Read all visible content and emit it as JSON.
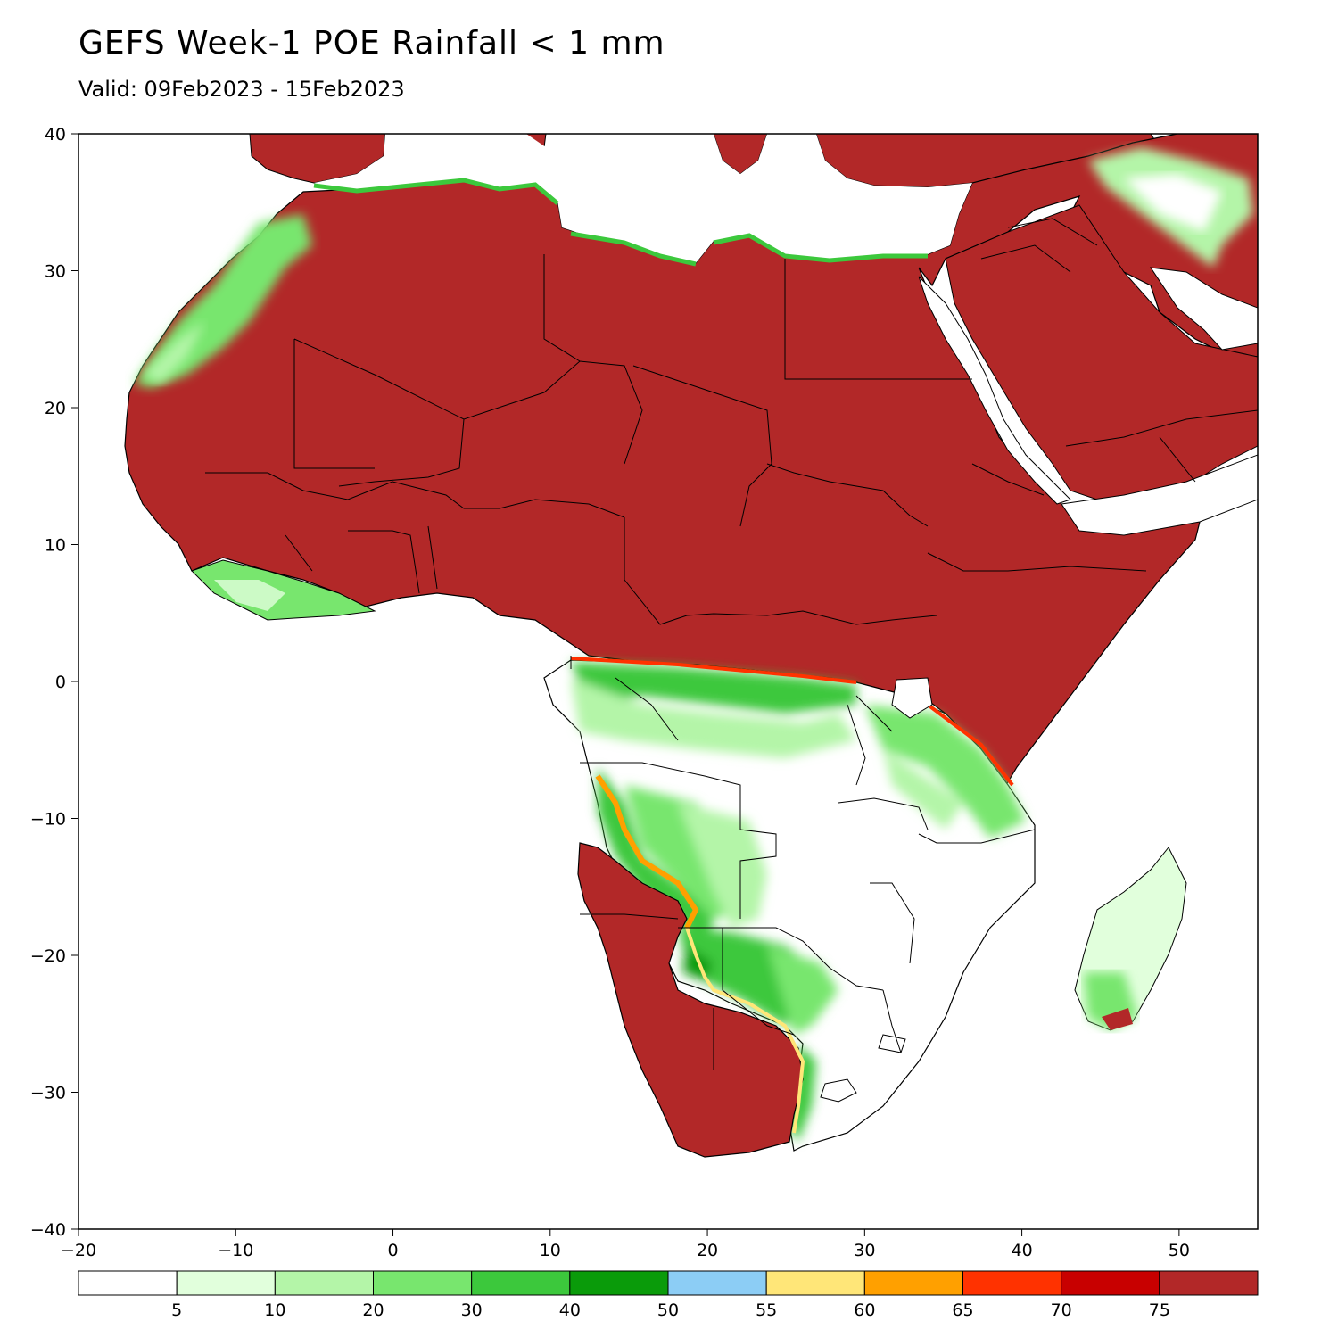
{
  "title": "GEFS Week-1 POE Rainfall < 1 mm",
  "subtitle": "Valid: 09Feb2023 - 15Feb2023",
  "axes": {
    "lon_range": [
      -20,
      55
    ],
    "lat_range": [
      -40,
      40
    ],
    "x_ticks": [
      {
        "value": -20,
        "label": "−20"
      },
      {
        "value": -10,
        "label": "−10"
      },
      {
        "value": 0,
        "label": "0"
      },
      {
        "value": 10,
        "label": "10"
      },
      {
        "value": 20,
        "label": "20"
      },
      {
        "value": 30,
        "label": "30"
      },
      {
        "value": 40,
        "label": "40"
      },
      {
        "value": 50,
        "label": "50"
      }
    ],
    "y_ticks": [
      {
        "value": 40,
        "label": "40"
      },
      {
        "value": 30,
        "label": "30"
      },
      {
        "value": 20,
        "label": "20"
      },
      {
        "value": 10,
        "label": "10"
      },
      {
        "value": 0,
        "label": "0"
      },
      {
        "value": -10,
        "label": "−10"
      },
      {
        "value": -20,
        "label": "−20"
      },
      {
        "value": -30,
        "label": "−30"
      },
      {
        "value": -40,
        "label": "−40"
      }
    ]
  },
  "legend": {
    "colors": [
      "#ffffff",
      "#e1ffdc",
      "#b4f5a8",
      "#78e66e",
      "#3cc83c",
      "#0a9b0a",
      "#8ccdf5",
      "#ffe678",
      "#ffa000",
      "#ff3200",
      "#c80000",
      "#b22828"
    ],
    "labels": [
      "5",
      "10",
      "20",
      "30",
      "40",
      "50",
      "55",
      "60",
      "65",
      "70",
      "75"
    ]
  },
  "colors": {
    "dry": "#b22828",
    "land_outline": "#000000"
  }
}
